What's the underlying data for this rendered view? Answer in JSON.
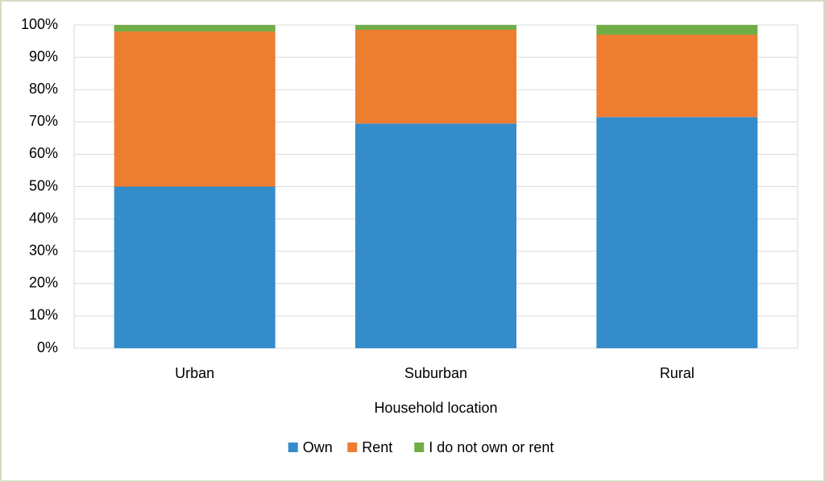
{
  "chart_data": {
    "type": "stacked_bar",
    "categories": [
      "Urban",
      "Suburban",
      "Rural"
    ],
    "series": [
      {
        "name": "Own",
        "color": "#358ccb",
        "values": [
          50,
          69.5,
          71.5
        ]
      },
      {
        "name": "Rent",
        "color": "#ed7d31",
        "values": [
          48,
          29,
          25.5
        ]
      },
      {
        "name": "I do not own or rent",
        "color": "#70ad47",
        "values": [
          2,
          1.5,
          3
        ]
      }
    ],
    "xlabel": "Household location",
    "ylim": [
      0,
      100
    ],
    "yticks": [
      {
        "value": 0,
        "label": "0%"
      },
      {
        "value": 10,
        "label": "10%"
      },
      {
        "value": 20,
        "label": "20%"
      },
      {
        "value": 30,
        "label": "30%"
      },
      {
        "value": 40,
        "label": "40%"
      },
      {
        "value": 50,
        "label": "50%"
      },
      {
        "value": 60,
        "label": "60%"
      },
      {
        "value": 70,
        "label": "70%"
      },
      {
        "value": 80,
        "label": "80%"
      },
      {
        "value": 90,
        "label": "90%"
      },
      {
        "value": 100,
        "label": "100%"
      }
    ],
    "grid": true,
    "legend": "bottom"
  }
}
